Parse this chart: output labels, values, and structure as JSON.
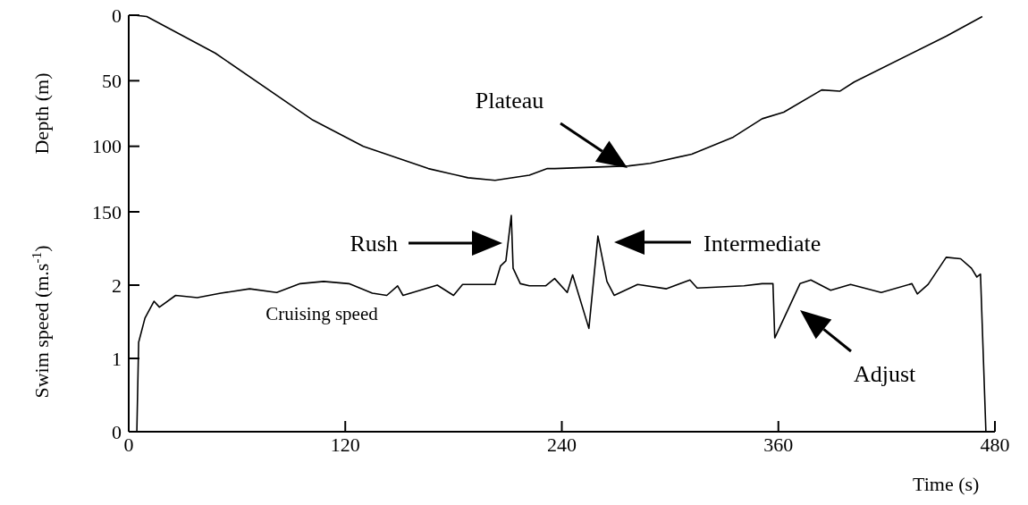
{
  "chart_data": [
    {
      "type": "line",
      "ylabel": "Depth (m)",
      "xlim": [
        0,
        480
      ],
      "ylim": [
        150,
        0
      ],
      "yticks": [
        0,
        50,
        100,
        150
      ],
      "tick_labels": "y",
      "series": [
        {
          "color": "#000000",
          "x": [
            3,
            10,
            48,
            102,
            130,
            166,
            188,
            203,
            222,
            232,
            236,
            277,
            289,
            312,
            335,
            351,
            363,
            384,
            394,
            402,
            453,
            473
          ],
          "values": [
            0,
            1,
            29,
            80,
            100,
            117,
            124,
            126,
            122,
            117,
            117,
            115,
            113,
            106,
            93,
            79,
            74,
            57,
            58,
            51,
            16,
            1
          ]
        }
      ],
      "annotations": [
        "Plateau"
      ]
    },
    {
      "type": "line",
      "ylabel": "Swim speed (m.s$^{-1}$)",
      "xlabel": "Time (s)",
      "xlim": [
        0,
        480
      ],
      "ylim": [
        0,
        3
      ],
      "yticks": [
        0,
        1,
        2
      ],
      "xticks": [
        0,
        120,
        240,
        360,
        480
      ],
      "series": [
        {
          "color": "#000000",
          "x": [
            4.5,
            5.5,
            9,
            14,
            17,
            26,
            38,
            51,
            67,
            82,
            95,
            108,
            122,
            135,
            143,
            149,
            152,
            171,
            180,
            185,
            203,
            206,
            209,
            212,
            213,
            217,
            222,
            231,
            236,
            243,
            246,
            255,
            260,
            265,
            269,
            282,
            298,
            311,
            315,
            341,
            351,
            357,
            358,
            372,
            378,
            389,
            400,
            417,
            434,
            437,
            443,
            453,
            461,
            467,
            470,
            472,
            475
          ],
          "values": [
            0,
            1.22,
            1.55,
            1.78,
            1.7,
            1.86,
            1.83,
            1.89,
            1.95,
            1.9,
            2.02,
            2.05,
            2.02,
            1.89,
            1.86,
            1.99,
            1.86,
            2.0,
            1.86,
            2.01,
            2.01,
            2.26,
            2.33,
            2.95,
            2.23,
            2.02,
            1.99,
            1.99,
            2.09,
            1.9,
            2.14,
            1.41,
            2.67,
            2.05,
            1.86,
            2.01,
            1.95,
            2.07,
            1.96,
            1.99,
            2.02,
            2.02,
            1.28,
            2.02,
            2.07,
            1.93,
            2.01,
            1.9,
            2.02,
            1.88,
            2.01,
            2.38,
            2.36,
            2.23,
            2.11,
            2.15,
            0
          ]
        }
      ],
      "annotations": [
        "Rush",
        "Intermediate",
        "Adjust",
        "Cruising speed"
      ]
    }
  ]
}
